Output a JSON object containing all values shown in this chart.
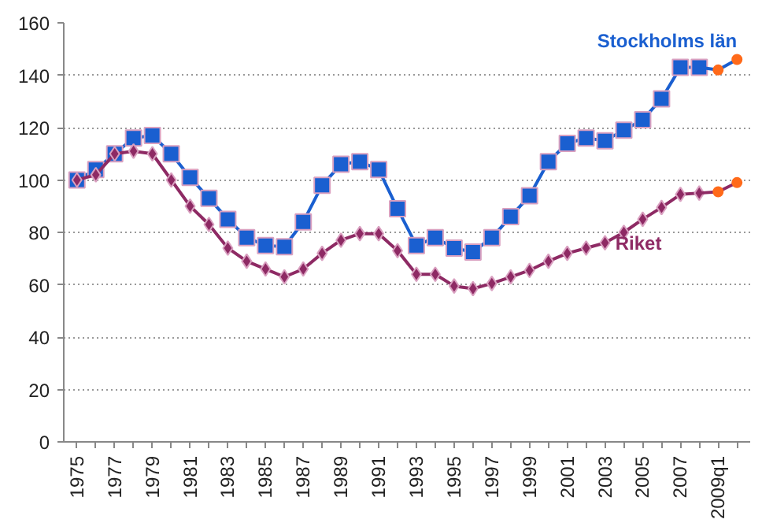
{
  "chart_data": {
    "type": "line",
    "categories": [
      "1975",
      null,
      "1977",
      null,
      "1979",
      null,
      "1981",
      null,
      "1983",
      null,
      "1985",
      null,
      "1987",
      null,
      "1989",
      null,
      "1991",
      null,
      "1993",
      null,
      "1995",
      null,
      "1997",
      null,
      "1999",
      null,
      "2001",
      null,
      "2003",
      null,
      "2005",
      null,
      "2007",
      null,
      "2009q1",
      null
    ],
    "ylim": [
      0,
      160
    ],
    "yticks": [
      0,
      20,
      40,
      60,
      80,
      100,
      120,
      140,
      160
    ],
    "grid": "y",
    "line_style": "solid",
    "series": [
      {
        "name": "Stockholms län",
        "color": "#1a5fd0",
        "marker": "square",
        "values": [
          100,
          104,
          110,
          116,
          117,
          110,
          101,
          93,
          85,
          78,
          75,
          74.5,
          84,
          98,
          106,
          107,
          104,
          89,
          75,
          78,
          74,
          72.5,
          78,
          86,
          94,
          107,
          114,
          116,
          115,
          119,
          123,
          131,
          143,
          143,
          null,
          null
        ]
      },
      {
        "color": "#1a5fd0",
        "marker": "none",
        "values": [
          null,
          null,
          null,
          null,
          null,
          null,
          null,
          null,
          null,
          null,
          null,
          null,
          null,
          null,
          null,
          null,
          null,
          null,
          null,
          null,
          null,
          null,
          null,
          null,
          null,
          null,
          null,
          null,
          null,
          null,
          null,
          null,
          null,
          143,
          142,
          146
        ]
      },
      {
        "type": "scatter",
        "color": "#ff6a1a",
        "marker": "circle",
        "values": [
          null,
          null,
          null,
          null,
          null,
          null,
          null,
          null,
          null,
          null,
          null,
          null,
          null,
          null,
          null,
          null,
          null,
          null,
          null,
          null,
          null,
          null,
          null,
          null,
          null,
          null,
          null,
          null,
          null,
          null,
          null,
          null,
          null,
          null,
          142,
          146
        ]
      },
      {
        "name": "Riket",
        "color": "#8e2a64",
        "marker": "diamond",
        "values": [
          100,
          102,
          110,
          111,
          110,
          100,
          90,
          83,
          74,
          69,
          66,
          63,
          66,
          72,
          77,
          79.5,
          79.5,
          73,
          64,
          64,
          59.5,
          58.5,
          60.5,
          63,
          65.5,
          69,
          72,
          74,
          76,
          80,
          85,
          89.5,
          94.5,
          95,
          null,
          null
        ]
      },
      {
        "color": "#8e2a64",
        "marker": "none",
        "values": [
          null,
          null,
          null,
          null,
          null,
          null,
          null,
          null,
          null,
          null,
          null,
          null,
          null,
          null,
          null,
          null,
          null,
          null,
          null,
          null,
          null,
          null,
          null,
          null,
          null,
          null,
          null,
          null,
          null,
          null,
          null,
          null,
          null,
          95,
          95.5,
          99
        ]
      },
      {
        "type": "scatter",
        "color": "#ff6a1a",
        "marker": "circle",
        "values": [
          null,
          null,
          null,
          null,
          null,
          null,
          null,
          null,
          null,
          null,
          null,
          null,
          null,
          null,
          null,
          null,
          null,
          null,
          null,
          null,
          null,
          null,
          null,
          null,
          null,
          null,
          null,
          null,
          null,
          null,
          null,
          null,
          null,
          null,
          95.5,
          99
        ]
      }
    ]
  }
}
